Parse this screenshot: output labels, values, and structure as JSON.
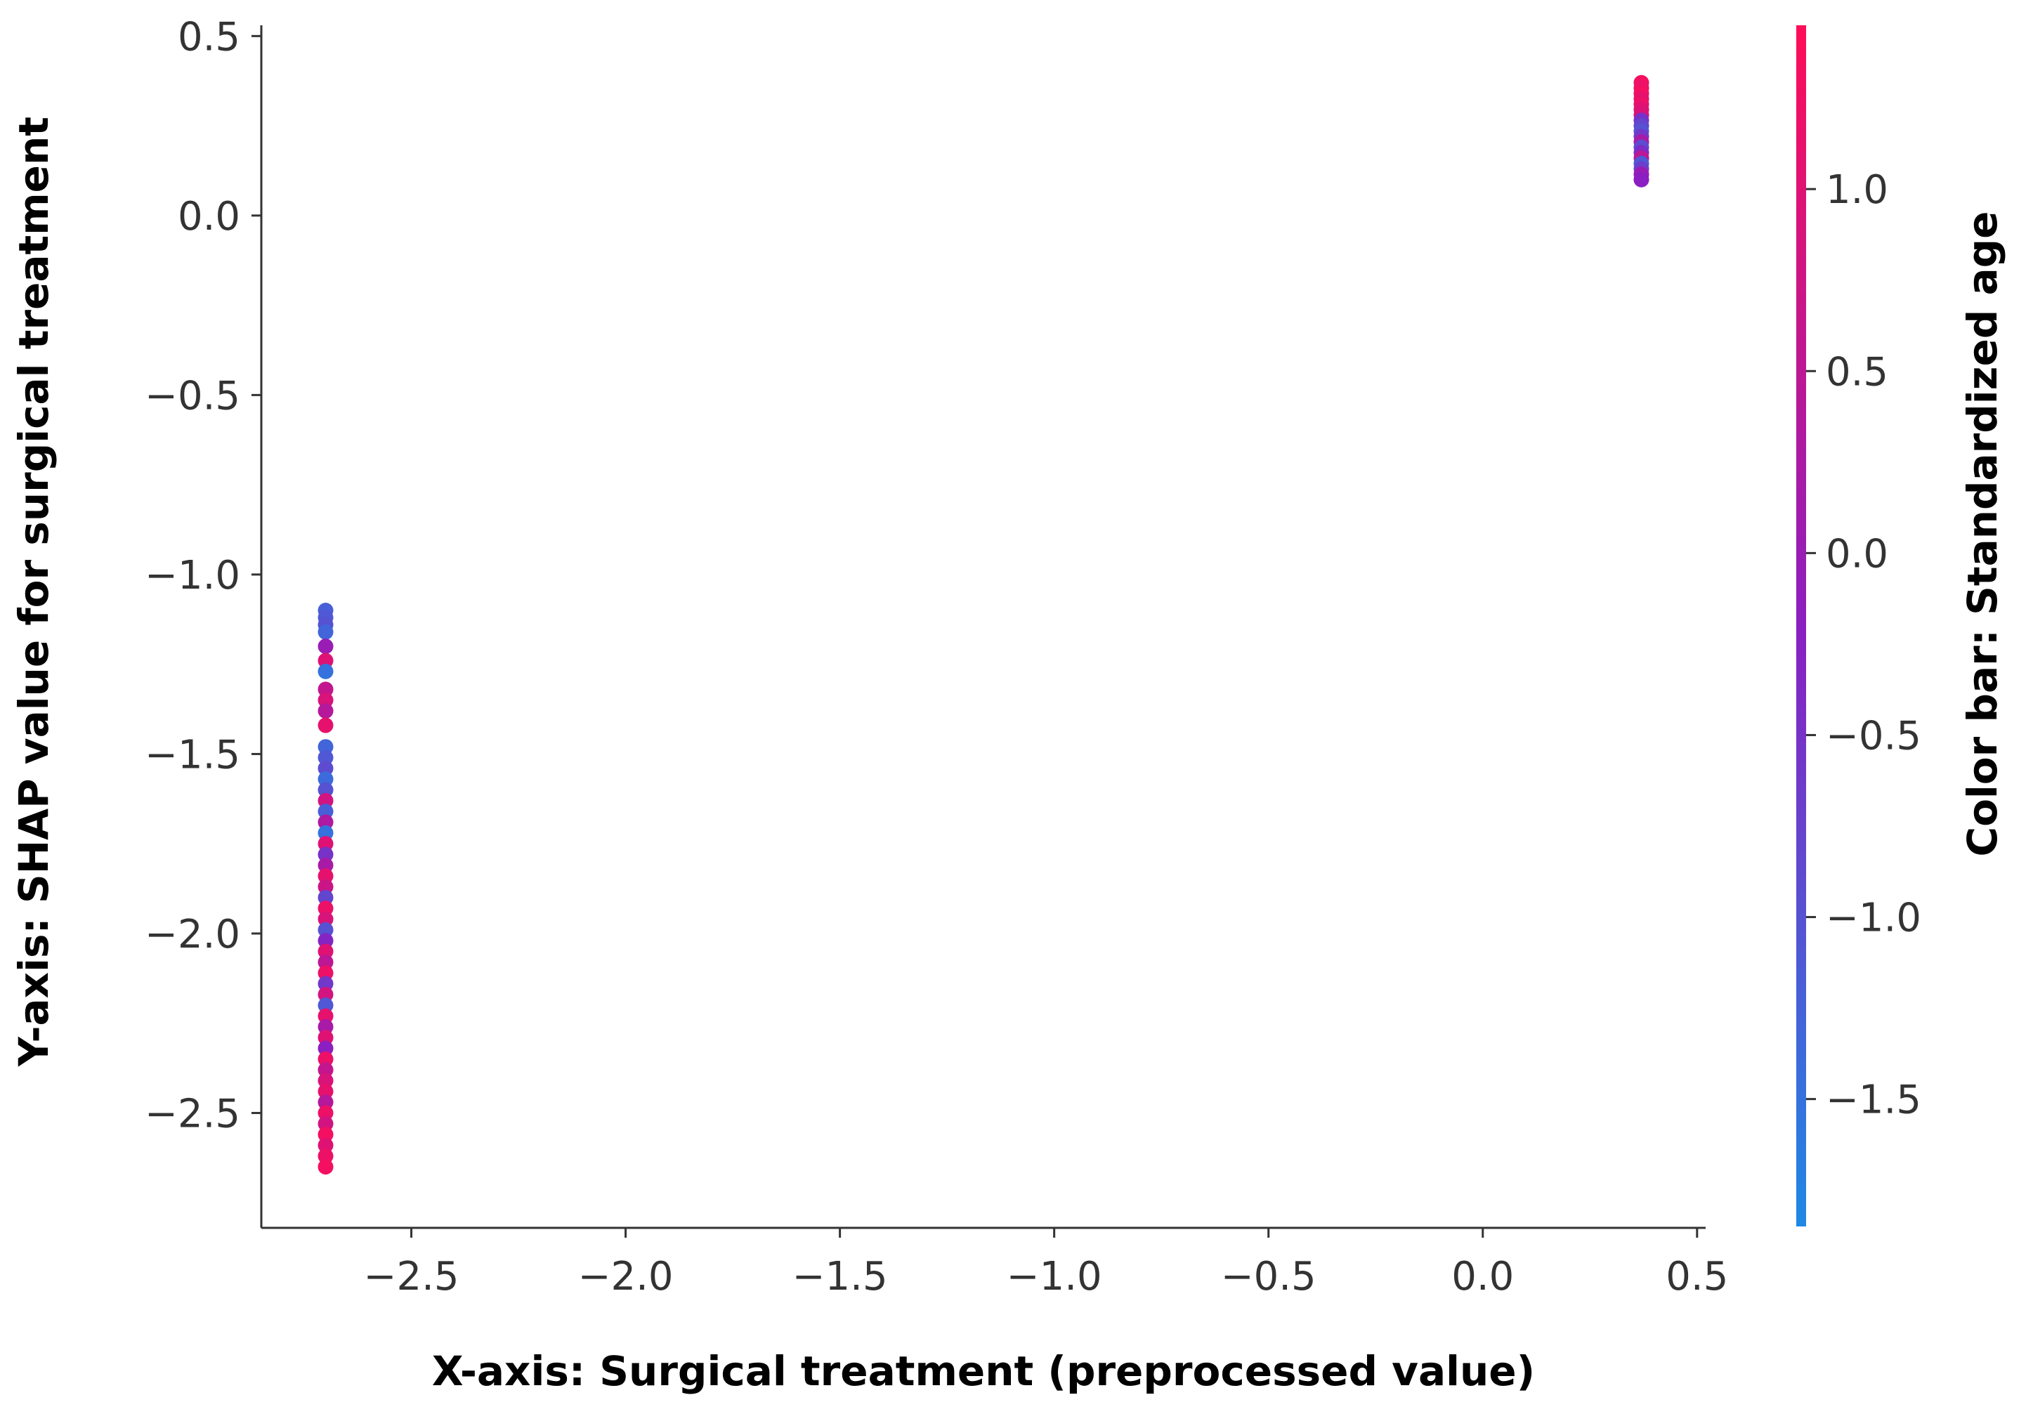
{
  "chart_data": {
    "type": "scatter",
    "title": "",
    "xlabel": "X-axis: Surgical treatment (preprocessed value)",
    "ylabel": "Y-axis: SHAP value for surgical treatment",
    "colorbar_label": "Color bar: Standardized age",
    "xlim": [
      -2.85,
      0.52
    ],
    "ylim": [
      -2.82,
      0.53
    ],
    "xticks": [
      {
        "value": -2.5,
        "label": "−2.5"
      },
      {
        "value": -2.0,
        "label": "−2.0"
      },
      {
        "value": -1.5,
        "label": "−1.5"
      },
      {
        "value": -1.0,
        "label": "−1.0"
      },
      {
        "value": -0.5,
        "label": "−0.5"
      },
      {
        "value": 0.0,
        "label": "0.0"
      },
      {
        "value": 0.5,
        "label": "0.5"
      }
    ],
    "yticks": [
      {
        "value": 0.5,
        "label": "0.5"
      },
      {
        "value": 0.0,
        "label": "0.0"
      },
      {
        "value": -0.5,
        "label": "−0.5"
      },
      {
        "value": -1.0,
        "label": "−1.0"
      },
      {
        "value": -1.5,
        "label": "−1.5"
      },
      {
        "value": -2.0,
        "label": "−2.0"
      },
      {
        "value": -2.5,
        "label": "−2.5"
      }
    ],
    "colorbar": {
      "range": [
        -1.85,
        1.45
      ],
      "low_color": "#1e88e5",
      "high_color": "#ff0d57",
      "ticks": [
        {
          "value": 1.0,
          "label": "1.0"
        },
        {
          "value": 0.5,
          "label": "0.5"
        },
        {
          "value": 0.0,
          "label": "0.0"
        },
        {
          "value": -0.5,
          "label": "−0.5"
        },
        {
          "value": -1.0,
          "label": "−1.0"
        },
        {
          "value": -1.5,
          "label": "−1.5"
        }
      ]
    },
    "grid": false,
    "clusters": [
      {
        "x": -2.7,
        "points": [
          {
            "y": -1.1,
            "c": -1.2
          },
          {
            "y": -1.12,
            "c": -1.1
          },
          {
            "y": -1.14,
            "c": -1.0
          },
          {
            "y": -1.16,
            "c": -1.3
          },
          {
            "y": -1.2,
            "c": 0.0
          },
          {
            "y": -1.24,
            "c": 1.0
          },
          {
            "y": -1.27,
            "c": -1.5
          },
          {
            "y": -1.32,
            "c": 0.6
          },
          {
            "y": -1.35,
            "c": 0.9
          },
          {
            "y": -1.38,
            "c": 0.4
          },
          {
            "y": -1.42,
            "c": 1.1
          },
          {
            "y": -1.48,
            "c": -1.3
          },
          {
            "y": -1.51,
            "c": -1.1
          },
          {
            "y": -1.54,
            "c": -0.9
          },
          {
            "y": -1.57,
            "c": -1.4
          },
          {
            "y": -1.6,
            "c": -1.0
          },
          {
            "y": -1.63,
            "c": 0.8
          },
          {
            "y": -1.66,
            "c": -1.2
          },
          {
            "y": -1.69,
            "c": 0.3
          },
          {
            "y": -1.72,
            "c": -1.5
          },
          {
            "y": -1.75,
            "c": 1.0
          },
          {
            "y": -1.78,
            "c": -0.5
          },
          {
            "y": -1.81,
            "c": 0.2
          },
          {
            "y": -1.84,
            "c": 1.1
          },
          {
            "y": -1.87,
            "c": 0.7
          },
          {
            "y": -1.9,
            "c": -0.8
          },
          {
            "y": -1.93,
            "c": 1.2
          },
          {
            "y": -1.96,
            "c": 0.9
          },
          {
            "y": -1.99,
            "c": -1.0
          },
          {
            "y": -2.02,
            "c": -0.3
          },
          {
            "y": -2.05,
            "c": 1.0
          },
          {
            "y": -2.08,
            "c": 0.5
          },
          {
            "y": -2.11,
            "c": 1.2
          },
          {
            "y": -2.14,
            "c": -0.6
          },
          {
            "y": -2.17,
            "c": 0.8
          },
          {
            "y": -2.2,
            "c": -1.1
          },
          {
            "y": -2.23,
            "c": 1.1
          },
          {
            "y": -2.26,
            "c": 0.2
          },
          {
            "y": -2.29,
            "c": 1.0
          },
          {
            "y": -2.32,
            "c": -0.2
          },
          {
            "y": -2.35,
            "c": 1.2
          },
          {
            "y": -2.38,
            "c": 0.6
          },
          {
            "y": -2.41,
            "c": 0.9
          },
          {
            "y": -2.44,
            "c": 1.1
          },
          {
            "y": -2.47,
            "c": 0.4
          },
          {
            "y": -2.5,
            "c": 1.2
          },
          {
            "y": -2.53,
            "c": 0.8
          },
          {
            "y": -2.56,
            "c": 1.3
          },
          {
            "y": -2.59,
            "c": 1.0
          },
          {
            "y": -2.62,
            "c": 1.2
          },
          {
            "y": -2.65,
            "c": 1.3
          }
        ]
      },
      {
        "x": 0.37,
        "points": [
          {
            "y": 0.37,
            "c": 1.3
          },
          {
            "y": 0.355,
            "c": 1.2
          },
          {
            "y": 0.34,
            "c": 1.3
          },
          {
            "y": 0.325,
            "c": 1.1
          },
          {
            "y": 0.31,
            "c": 1.2
          },
          {
            "y": 0.295,
            "c": 1.0
          },
          {
            "y": 0.28,
            "c": 0.9
          },
          {
            "y": 0.265,
            "c": -0.5
          },
          {
            "y": 0.25,
            "c": -0.8
          },
          {
            "y": 0.235,
            "c": -1.0
          },
          {
            "y": 0.22,
            "c": -0.6
          },
          {
            "y": 0.205,
            "c": 0.2
          },
          {
            "y": 0.19,
            "c": -0.9
          },
          {
            "y": 0.175,
            "c": -0.4
          },
          {
            "y": 0.16,
            "c": 0.5
          },
          {
            "y": 0.145,
            "c": -1.1
          },
          {
            "y": 0.13,
            "c": -0.7
          },
          {
            "y": 0.115,
            "c": 0.0
          },
          {
            "y": 0.1,
            "c": -0.2
          }
        ]
      }
    ]
  }
}
